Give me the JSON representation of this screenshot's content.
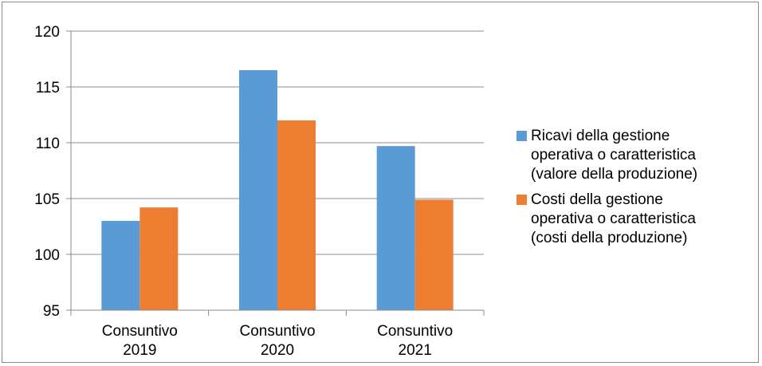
{
  "chart_data": {
    "type": "bar",
    "categories": [
      [
        "Consuntivo",
        "2019"
      ],
      [
        "Consuntivo",
        "2020"
      ],
      [
        "Consuntivo",
        "2021"
      ]
    ],
    "series": [
      {
        "name": "Ricavi della gestione operativa o caratteristica (valore della produzione)",
        "name_lines": [
          "Ricavi della gestione",
          "operativa o caratteristica",
          "(valore della produzione)"
        ],
        "values": [
          103.0,
          116.5,
          109.7
        ],
        "color": "#5b9bd5"
      },
      {
        "name": "Costi della gestione operativa o caratteristica (costi della produzione)",
        "name_lines": [
          "Costi della gestione",
          "operativa o caratteristica",
          "(costi della produzione)"
        ],
        "values": [
          104.2,
          112.0,
          104.9
        ],
        "color": "#ed7d31"
      }
    ],
    "ylim": [
      95,
      120
    ],
    "yticks": [
      95,
      100,
      105,
      110,
      115,
      120
    ],
    "grid": true,
    "legend": "right",
    "title": "",
    "xlabel": "",
    "ylabel": ""
  }
}
